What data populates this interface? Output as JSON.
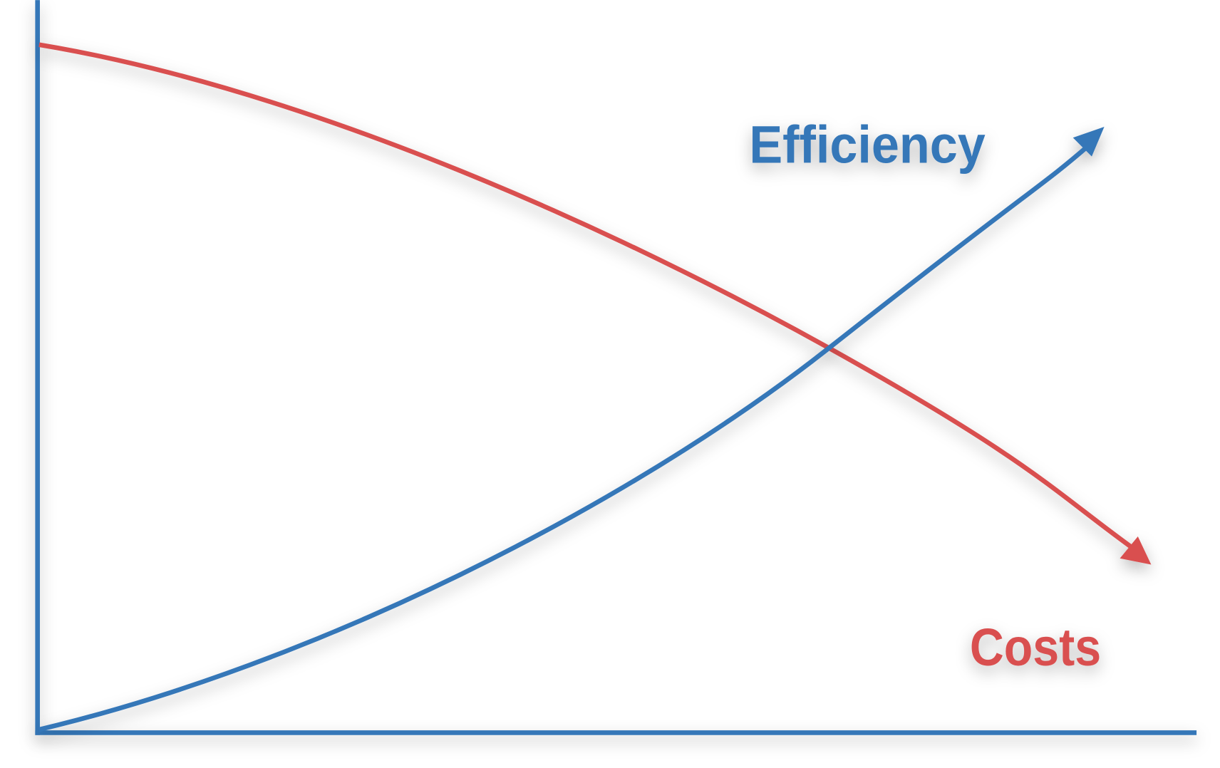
{
  "labels": {
    "efficiency": "Efficiency",
    "costs": "Costs"
  }
}
